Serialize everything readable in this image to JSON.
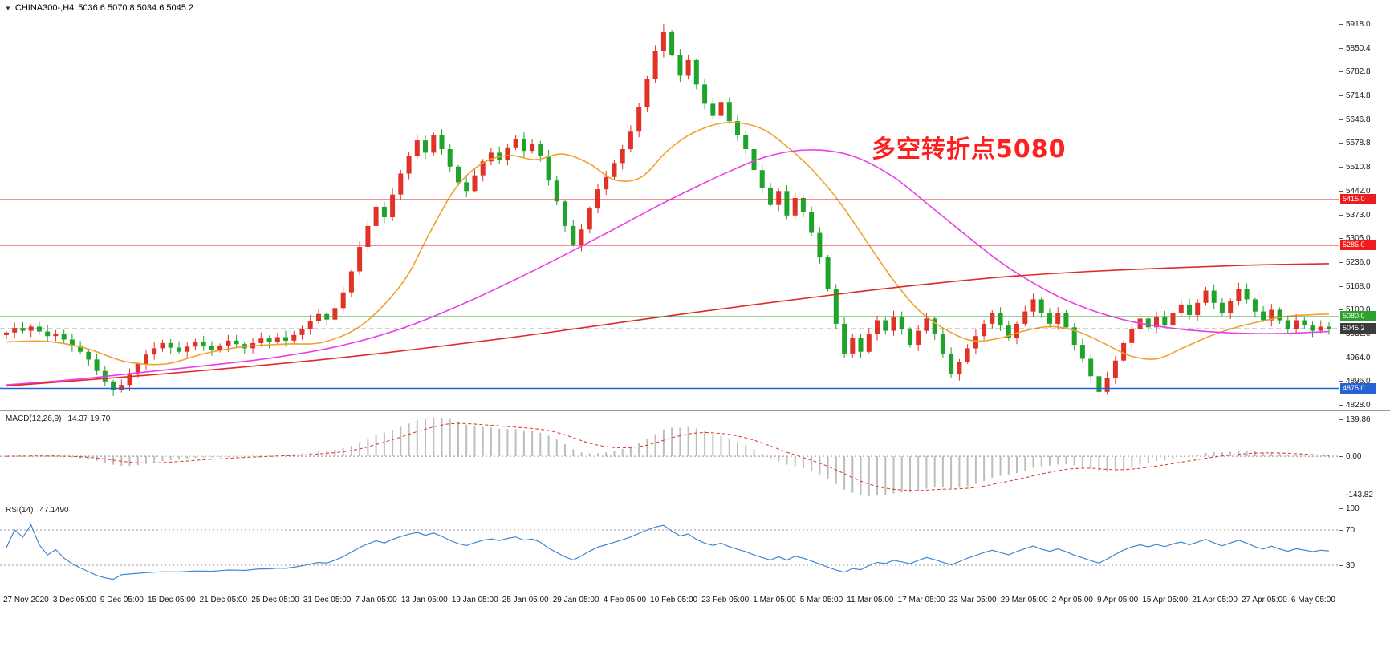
{
  "window": {
    "symbol_bar": {
      "collapse_icon": "▼",
      "title": "CHINA300-,H4",
      "ohlc": "5036.6 5070.8 5034.6 5045.2"
    },
    "annotation": {
      "text": "多空转折点5080",
      "color": "#ff1f1f"
    }
  },
  "chart_data": {
    "type": "candlestick",
    "symbol": "CHINA300-",
    "timeframe": "H4",
    "last_price": 5045.2,
    "main": {
      "axis_ticks": [
        "5918.0",
        "5850.4",
        "5782.8",
        "5714.8",
        "5646.8",
        "5578.8",
        "5510.8",
        "5442.0",
        "5373.0",
        "5305.0",
        "5236.0",
        "5168.0",
        "5100.0",
        "5032.0",
        "4964.0",
        "4896.0",
        "4828.0"
      ],
      "axis_range": [
        5918.0,
        4828.0
      ],
      "up_color": "#e03226",
      "down_color": "#1fa32b",
      "open_first": 5028,
      "extreme_high": 5918.0,
      "extreme_low": 4845.0,
      "closes": [
        5035,
        5048,
        5040,
        5052,
        5038,
        5025,
        5032,
        5015,
        4998,
        4980,
        4958,
        4925,
        4895,
        4870,
        4885,
        4915,
        4945,
        4972,
        4990,
        5005,
        4992,
        4980,
        4995,
        5008,
        4996,
        4985,
        4998,
        5012,
        5002,
        4990,
        5005,
        5018,
        5008,
        5022,
        5012,
        5028,
        5045,
        5068,
        5088,
        5072,
        5105,
        5150,
        5210,
        5280,
        5340,
        5395,
        5365,
        5430,
        5490,
        5540,
        5585,
        5550,
        5600,
        5560,
        5510,
        5465,
        5440,
        5485,
        5525,
        5550,
        5530,
        5565,
        5590,
        5555,
        5575,
        5540,
        5470,
        5410,
        5340,
        5285,
        5330,
        5390,
        5445,
        5480,
        5520,
        5560,
        5610,
        5680,
        5760,
        5840,
        5895,
        5830,
        5770,
        5815,
        5745,
        5690,
        5655,
        5695,
        5640,
        5600,
        5560,
        5500,
        5450,
        5400,
        5440,
        5370,
        5420,
        5380,
        5320,
        5250,
        5160,
        5060,
        4975,
        5020,
        4980,
        5030,
        5070,
        5040,
        5080,
        5045,
        5000,
        5040,
        5075,
        5030,
        4975,
        4915,
        4950,
        4990,
        5025,
        5060,
        5090,
        5055,
        5020,
        5060,
        5095,
        5130,
        5090,
        5060,
        5090,
        5050,
        5000,
        4960,
        4910,
        4865,
        4905,
        4955,
        5005,
        5045,
        5075,
        5050,
        5080,
        5055,
        5090,
        5115,
        5085,
        5120,
        5155,
        5120,
        5090,
        5125,
        5160,
        5130,
        5095,
        5070,
        5100,
        5070,
        5045,
        5070,
        5055,
        5040,
        5052,
        5045.2
      ],
      "hlines": [
        {
          "value": 5415.0,
          "label": "5415.0",
          "color": "#ee1c1c",
          "style": "solid"
        },
        {
          "value": 5285.0,
          "label": "5285.0",
          "color": "#ee1c1c",
          "style": "solid"
        },
        {
          "value": 5080.0,
          "label": "5080.0",
          "color": "#2fa12f",
          "style": "solid"
        },
        {
          "value": 5045.2,
          "label": "5045.2",
          "color": "#4a4a4a",
          "style": "dash"
        },
        {
          "value": 4875.0,
          "label": "4875.0",
          "color": "#2563d4",
          "style": "solid"
        }
      ],
      "ma_lines": [
        {
          "name": "ma-fast-orange",
          "color": "#f2a02e",
          "points": [
            [
              0,
              5008
            ],
            [
              0.03,
              5010
            ],
            [
              0.06,
              4990
            ],
            [
              0.09,
              4952
            ],
            [
              0.12,
              4945
            ],
            [
              0.15,
              4975
            ],
            [
              0.18,
              4995
            ],
            [
              0.21,
              5002
            ],
            [
              0.24,
              5008
            ],
            [
              0.27,
              5060
            ],
            [
              0.3,
              5180
            ],
            [
              0.32,
              5320
            ],
            [
              0.34,
              5450
            ],
            [
              0.36,
              5520
            ],
            [
              0.38,
              5542
            ],
            [
              0.4,
              5530
            ],
            [
              0.42,
              5546
            ],
            [
              0.44,
              5520
            ],
            [
              0.46,
              5472
            ],
            [
              0.48,
              5480
            ],
            [
              0.5,
              5556
            ],
            [
              0.52,
              5608
            ],
            [
              0.545,
              5636
            ],
            [
              0.57,
              5620
            ],
            [
              0.59,
              5568
            ],
            [
              0.61,
              5498
            ],
            [
              0.63,
              5408
            ],
            [
              0.65,
              5298
            ],
            [
              0.67,
              5188
            ],
            [
              0.69,
              5098
            ],
            [
              0.71,
              5044
            ],
            [
              0.73,
              5012
            ],
            [
              0.75,
              5018
            ],
            [
              0.77,
              5040
            ],
            [
              0.79,
              5052
            ],
            [
              0.81,
              5038
            ],
            [
              0.83,
              5004
            ],
            [
              0.85,
              4968
            ],
            [
              0.87,
              4960
            ],
            [
              0.89,
              4992
            ],
            [
              0.91,
              5025
            ],
            [
              0.93,
              5050
            ],
            [
              0.95,
              5068
            ],
            [
              0.97,
              5082
            ],
            [
              1,
              5088
            ]
          ]
        },
        {
          "name": "ma-mid-magenta",
          "color": "#ea3cea",
          "points": [
            [
              0,
              4885
            ],
            [
              0.05,
              4900
            ],
            [
              0.1,
              4920
            ],
            [
              0.15,
              4940
            ],
            [
              0.2,
              4962
            ],
            [
              0.25,
              4995
            ],
            [
              0.3,
              5048
            ],
            [
              0.35,
              5125
            ],
            [
              0.4,
              5215
            ],
            [
              0.45,
              5312
            ],
            [
              0.5,
              5412
            ],
            [
              0.55,
              5502
            ],
            [
              0.58,
              5544
            ],
            [
              0.61,
              5558
            ],
            [
              0.64,
              5540
            ],
            [
              0.67,
              5482
            ],
            [
              0.7,
              5392
            ],
            [
              0.73,
              5300
            ],
            [
              0.76,
              5215
            ],
            [
              0.8,
              5130
            ],
            [
              0.84,
              5076
            ],
            [
              0.88,
              5048
            ],
            [
              0.92,
              5035
            ],
            [
              0.96,
              5032
            ],
            [
              1,
              5038
            ]
          ]
        },
        {
          "name": "ma-slow-red",
          "color": "#e02a2a",
          "points": [
            [
              0,
              4882
            ],
            [
              0.08,
              4905
            ],
            [
              0.16,
              4930
            ],
            [
              0.24,
              4958
            ],
            [
              0.32,
              4992
            ],
            [
              0.4,
              5030
            ],
            [
              0.48,
              5072
            ],
            [
              0.56,
              5112
            ],
            [
              0.64,
              5150
            ],
            [
              0.7,
              5175
            ],
            [
              0.76,
              5196
            ],
            [
              0.82,
              5210
            ],
            [
              0.88,
              5220
            ],
            [
              0.94,
              5228
            ],
            [
              1,
              5232
            ]
          ]
        }
      ]
    },
    "macd": {
      "label": "MACD(12,26,9)",
      "values_text": "14.37 19.70",
      "params": [
        12,
        26,
        9
      ],
      "axis_ticks": [
        "139.86",
        "0.00",
        "-143.82"
      ],
      "histogram_color": "#bdbdbd",
      "signal_color": "#e03226"
    },
    "rsi": {
      "label": "RSI(14)",
      "value_text": "47.1490",
      "period": 14,
      "axis_ticks": [
        "100",
        "70",
        "30"
      ],
      "levels": [
        70,
        30
      ],
      "line_color": "#3f86d2"
    },
    "time_labels": [
      "27 Nov 2020",
      "3 Dec 05:00",
      "9 Dec 05:00",
      "15 Dec 05:00",
      "21 Dec 05:00",
      "25 Dec 05:00",
      "31 Dec 05:00",
      "7 Jan 05:00",
      "13 Jan 05:00",
      "19 Jan 05:00",
      "25 Jan 05:00",
      "29 Jan 05:00",
      "4 Feb 05:00",
      "10 Feb 05:00",
      "23 Feb 05:00",
      "1 Mar 05:00",
      "5 Mar 05:00",
      "11 Mar 05:00",
      "17 Mar 05:00",
      "23 Mar 05:00",
      "29 Mar 05:00",
      "2 Apr 05:00",
      "9 Apr 05:00",
      "15 Apr 05:00",
      "21 Apr 05:00",
      "27 Apr 05:00",
      "6 May 05:00"
    ]
  },
  "colors": {
    "background": "#ffffff",
    "separator": "#9b9b9b",
    "axis_text": "#1a1a1a"
  }
}
